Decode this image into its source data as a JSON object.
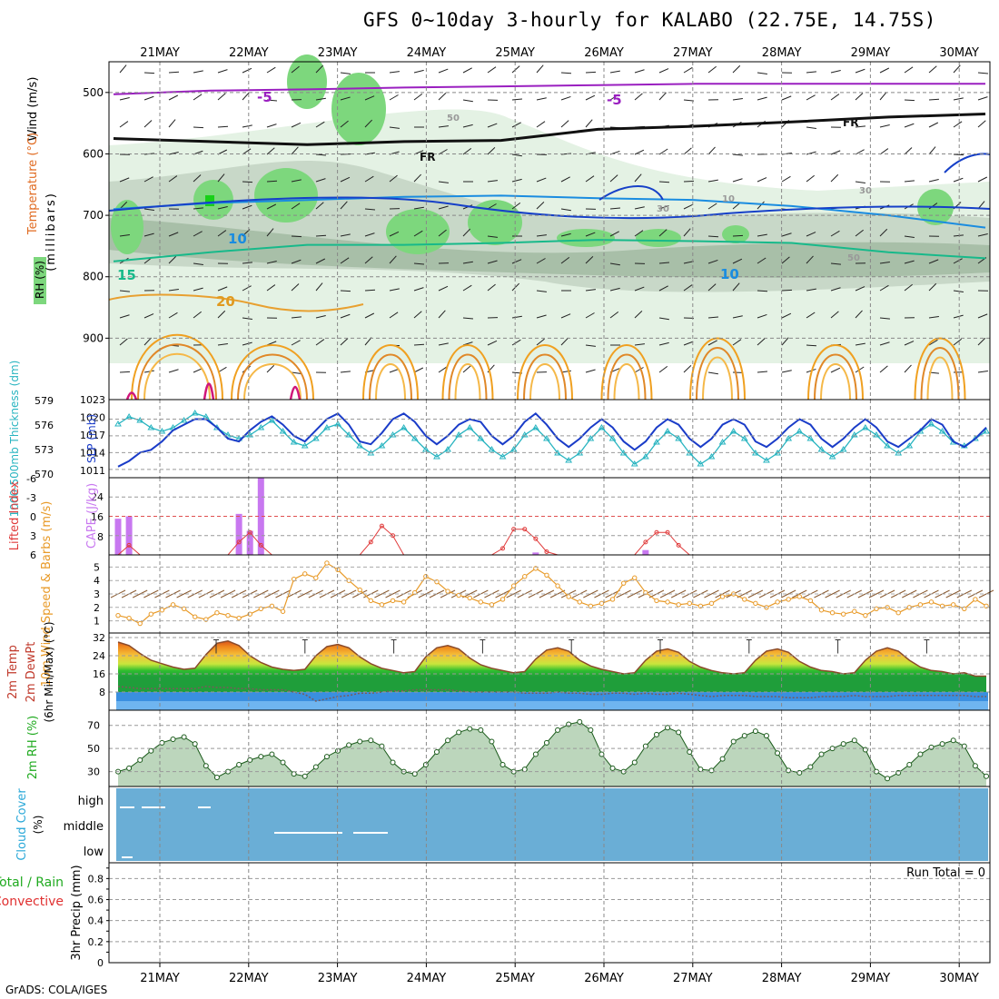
{
  "title": "GFS 0~10day 3-hourly for KALABO (22.75E, 14.75S)",
  "footer": "GrADS: COLA/IGES",
  "dates": [
    "21MAY",
    "22MAY",
    "23MAY",
    "24MAY",
    "25MAY",
    "26MAY",
    "27MAY",
    "28MAY",
    "29MAY",
    "30MAY"
  ],
  "colors": {
    "rh_light": "#e4f2e4",
    "rh_mid": "#c8d8c8",
    "rh_dark": "#a8bfa8",
    "rh_green": "#7dd77d",
    "cape": "#c878f0",
    "slp": "#1a3cc8",
    "thick": "#28b4c0",
    "li": "#e03a3a",
    "wind": "#e89a28",
    "rh2m": "#6cc36c",
    "cloud": "#6aaed6"
  },
  "chart_data": [
    {
      "type": "heatmap",
      "panel": "upper-air",
      "ylabel": "(millibars)",
      "side_label_wind": "Wind (m/s)",
      "side_label_temp": "Temperature (°C)",
      "side_label_rh": "RH (%)",
      "yticks": [
        500,
        600,
        700,
        800,
        900
      ],
      "ylim": [
        1000,
        450
      ],
      "contour_labels": [
        "-5",
        "-5",
        "FR",
        "FR",
        "10",
        "10",
        "15",
        "20",
        "50",
        "50",
        "30",
        "30",
        "10"
      ],
      "temperature_isotherms": [
        {
          "label": "-5",
          "pressure": [
            503,
            497,
            495,
            492,
            490,
            488,
            486,
            486,
            486,
            486
          ]
        },
        {
          "label": "FR",
          "pressure": [
            575,
            580,
            585,
            580,
            578,
            560,
            555,
            548,
            540,
            535
          ]
        },
        {
          "label": "10",
          "pressure": [
            690,
            680,
            675,
            670,
            668,
            672,
            675,
            685,
            700,
            720
          ]
        },
        {
          "label": "15",
          "pressure": [
            775,
            760,
            748,
            748,
            745,
            740,
            742,
            745,
            760,
            770
          ]
        }
      ]
    },
    {
      "type": "line",
      "panel": "slp-thickness",
      "ylabel_left": "1000-500mb Thickness (dm)",
      "ylabel_right": "SLP (mb)",
      "yticks_left": [
        "579",
        "576",
        "573",
        "570"
      ],
      "yticks_right": [
        "1023",
        "1020",
        "1017",
        "1014",
        "1011"
      ],
      "series": [
        {
          "name": "SLP",
          "values": [
            1011.5,
            1012.5,
            1014,
            1014.5,
            1016,
            1018,
            1019,
            1020,
            1020,
            1018.5,
            1016.5,
            1016,
            1018,
            1019.5,
            1020.5,
            1019,
            1017,
            1016,
            1018,
            1020,
            1021,
            1019,
            1016,
            1015.5,
            1017.5,
            1020,
            1021,
            1019.5,
            1017,
            1015.5,
            1017,
            1019,
            1020,
            1019.5,
            1017,
            1015.5,
            1017,
            1019.5,
            1021,
            1019,
            1016.5,
            1015,
            1016.5,
            1018.5,
            1020,
            1018.5,
            1016,
            1014.5,
            1016,
            1018.5,
            1020,
            1019,
            1016.5,
            1015,
            1016.5,
            1019,
            1020,
            1019,
            1016,
            1015,
            1016.5,
            1018.5,
            1020,
            1019,
            1016.5,
            1015,
            1016.5,
            1018.5,
            1020,
            1018.5,
            1016,
            1015,
            1016.5,
            1018,
            1020,
            1019,
            1016,
            1015,
            1016.5,
            1018.5
          ]
        },
        {
          "name": "Thickness",
          "values": [
            576,
            577,
            576.5,
            575.5,
            575,
            575.5,
            576.5,
            577.5,
            577,
            575.5,
            574.5,
            574,
            574.5,
            575.5,
            576.5,
            575,
            573.5,
            573,
            574,
            575.5,
            576,
            574.5,
            573,
            572,
            573,
            574.5,
            575.5,
            574,
            572.5,
            571.5,
            572.5,
            574.5,
            575.5,
            574,
            572.5,
            571.5,
            572.5,
            574.5,
            575.5,
            574,
            572,
            571,
            572,
            574,
            575.5,
            574,
            572,
            570.5,
            571.5,
            573.5,
            575,
            574,
            572,
            570.5,
            571.5,
            573.5,
            575,
            574,
            572,
            571,
            572,
            574,
            575,
            574,
            572.5,
            571.5,
            572.5,
            574.5,
            575.5,
            574.5,
            573,
            572,
            573,
            575,
            576,
            575,
            573.5,
            573,
            574,
            575
          ]
        }
      ]
    },
    {
      "type": "bar",
      "panel": "cape-li",
      "ylabel_left": "Lifted Index",
      "ylabel_right": "CAPE (J/kg)",
      "yticks_left": [
        "-6",
        "-3",
        "0",
        "3",
        "6"
      ],
      "yticks_right": [
        "24",
        "16",
        "8"
      ],
      "series": [
        {
          "name": "CAPE",
          "values": [
            15,
            16,
            0,
            0,
            0,
            0,
            0,
            0,
            0,
            0,
            0,
            17,
            10,
            32,
            0,
            0,
            0,
            0,
            0,
            0,
            0,
            0,
            0,
            0,
            0,
            0,
            0,
            0,
            0,
            0,
            0,
            0,
            0,
            0,
            0,
            0,
            0,
            0,
            1,
            0,
            0,
            0,
            0,
            0,
            0,
            0,
            0,
            0,
            2,
            0,
            0,
            0,
            0,
            0,
            0,
            0,
            0,
            0,
            0,
            0,
            0,
            0,
            0,
            0,
            0,
            0,
            0,
            0,
            0,
            0,
            0,
            0,
            0,
            0,
            0,
            0,
            0,
            0,
            0,
            0
          ]
        },
        {
          "name": "Lifted Index",
          "values": [
            6,
            4.5,
            6,
            6,
            6,
            6,
            6,
            6,
            6,
            6,
            6,
            4,
            2.5,
            4.5,
            6,
            6,
            6,
            6,
            6,
            6,
            6,
            6,
            6,
            4,
            1.5,
            3,
            6,
            6,
            6,
            6,
            6,
            6,
            6,
            6,
            6,
            5,
            2,
            2,
            3.5,
            5.5,
            6,
            6,
            6,
            6,
            6,
            6,
            6,
            6,
            4,
            2.5,
            2.5,
            4.5,
            6,
            6,
            6,
            6,
            6,
            6,
            6,
            6,
            6,
            6,
            6,
            6,
            6,
            6,
            6,
            6,
            6,
            6,
            6,
            6,
            6,
            6,
            6,
            6,
            6,
            6,
            6,
            6
          ]
        }
      ]
    },
    {
      "type": "line",
      "panel": "wind10m",
      "ylabel": "10m Wind Speed & Barbs (m/s)",
      "yticks": [
        "5",
        "4",
        "3",
        "2",
        "1"
      ],
      "series": [
        {
          "name": "Wind speed",
          "values": [
            1.4,
            1.2,
            0.8,
            1.5,
            1.8,
            2.2,
            1.9,
            1.3,
            1.1,
            1.6,
            1.4,
            1.2,
            1.5,
            1.9,
            2.1,
            1.7,
            4.1,
            4.5,
            4.2,
            5.3,
            4.8,
            4.0,
            3.3,
            2.5,
            2.2,
            2.5,
            2.4,
            3.1,
            4.3,
            3.9,
            3.2,
            2.9,
            2.7,
            2.4,
            2.2,
            2.6,
            3.6,
            4.3,
            4.9,
            4.4,
            3.6,
            2.8,
            2.4,
            2.1,
            2.3,
            2.6,
            3.8,
            4.2,
            3.1,
            2.5,
            2.4,
            2.2,
            2.3,
            2.1,
            2.3,
            2.8,
            3.0,
            2.6,
            2.3,
            2.0,
            2.4,
            2.6,
            2.8,
            2.5,
            1.8,
            1.6,
            1.5,
            1.7,
            1.4,
            1.9,
            2.0,
            1.6,
            2.0,
            2.2,
            2.4,
            2.1,
            2.2,
            1.9,
            2.6,
            2.1
          ]
        }
      ]
    },
    {
      "type": "area",
      "panel": "temp2m",
      "ylabel": "2m Temp 2m DewPt (6hr Min/Max) (°C)",
      "yticks": [
        "32",
        "24",
        "16",
        "8"
      ],
      "series": [
        {
          "name": "2m Temp",
          "values": [
            30,
            28.5,
            25,
            22,
            20.5,
            19,
            18,
            18.5,
            24.5,
            29.5,
            30.5,
            28.5,
            24,
            21,
            19,
            18,
            17.5,
            18,
            24,
            28,
            29,
            27.5,
            23.5,
            20.5,
            18.5,
            17.5,
            16.5,
            17,
            23.5,
            27.5,
            28.5,
            27,
            23,
            20,
            18.5,
            17.5,
            16.5,
            17,
            22.5,
            26.5,
            27.5,
            26,
            22,
            19.5,
            18,
            17,
            16,
            16.5,
            22,
            26,
            27,
            25.5,
            21.5,
            19,
            17.5,
            16.5,
            16,
            16.5,
            22,
            26,
            27,
            25.5,
            21.5,
            19,
            17.5,
            17,
            16,
            16.5,
            22,
            26,
            27.5,
            26,
            22,
            19,
            17.5,
            17,
            16,
            16.5,
            15,
            15
          ]
        },
        {
          "name": "2m DewPt",
          "values": [
            10.5,
            10,
            9.5,
            9.5,
            9.5,
            9.5,
            9.5,
            9.5,
            10.5,
            10,
            10,
            9.5,
            9.5,
            9,
            9,
            9,
            8,
            7,
            4,
            5,
            6,
            6.5,
            7.5,
            7.5,
            8,
            8.5,
            8.5,
            9,
            9,
            9,
            9,
            8.5,
            8,
            8,
            8,
            8,
            8,
            7.5,
            7.5,
            7.5,
            8,
            7.5,
            7.5,
            7,
            7,
            7.5,
            7.5,
            7,
            7.5,
            7,
            7,
            7.5,
            7,
            6.5,
            6,
            6.5,
            6.5,
            6.5,
            6,
            6,
            6,
            5.5,
            5.5,
            5.5,
            6,
            6,
            6,
            6.5,
            6,
            6,
            6,
            6.5,
            6.5,
            6.5,
            6.5,
            6.5,
            6.5,
            6.5,
            6,
            6
          ]
        }
      ]
    },
    {
      "type": "area",
      "panel": "rh2m",
      "ylabel": "2m RH (%)",
      "yticks": [
        "70",
        "50",
        "30"
      ],
      "series": [
        {
          "name": "2m RH",
          "values": [
            30,
            33,
            40,
            48,
            55,
            58,
            60,
            54,
            35,
            25,
            30,
            36,
            40,
            43,
            45,
            38,
            28,
            26,
            34,
            43,
            48,
            53,
            56,
            57,
            52,
            38,
            30,
            28,
            36,
            47,
            57,
            64,
            67,
            66,
            56,
            36,
            30,
            32,
            45,
            55,
            66,
            71,
            73,
            66,
            45,
            33,
            30,
            38,
            52,
            62,
            68,
            64,
            47,
            32,
            31,
            41,
            56,
            61,
            65,
            61,
            46,
            31,
            29,
            34,
            45,
            50,
            54,
            57,
            49,
            30,
            24,
            29,
            36,
            45,
            51,
            54,
            57,
            52,
            35,
            26
          ]
        }
      ]
    },
    {
      "type": "table",
      "panel": "cloud",
      "ylabel": "Cloud Cover (%)",
      "levels": [
        "high",
        "middle",
        "low"
      ]
    },
    {
      "type": "bar",
      "panel": "precip",
      "ylabel": "3hr Precip (mm)",
      "side_label_total": "Total / Rain",
      "side_label_conv": "Convective",
      "yticks": [
        "0.8",
        "0.6",
        "0.4",
        "0.2",
        "0"
      ],
      "annotation": "Run Total = 0",
      "series": [
        {
          "name": "Precip",
          "values": []
        }
      ]
    }
  ]
}
